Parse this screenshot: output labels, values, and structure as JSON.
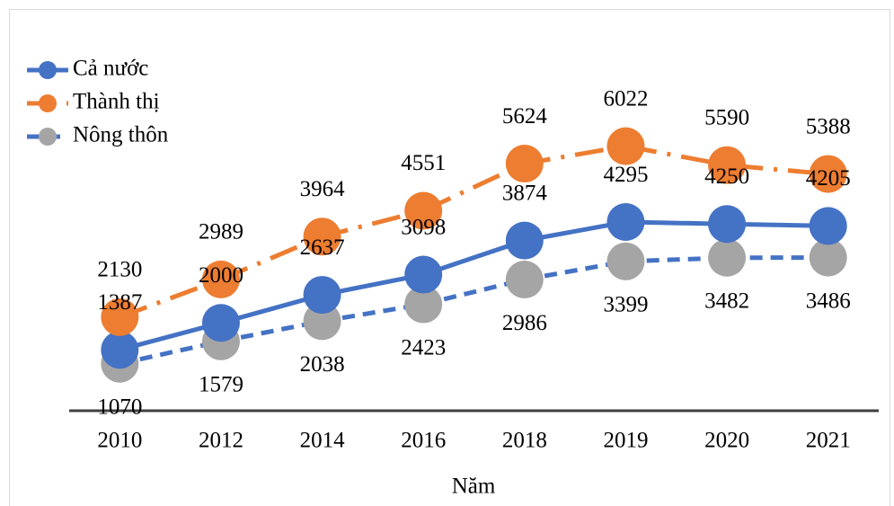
{
  "chart_data": {
    "type": "line",
    "x_label": "Năm",
    "categories": [
      "2010",
      "2012",
      "2014",
      "2016",
      "2018",
      "2019",
      "2020",
      "2021"
    ],
    "series": [
      {
        "name": "Cả nước",
        "color": "#4472c4",
        "marker_color": "#4472c4",
        "style": "solid",
        "label_position": "above",
        "values": [
          1387,
          2000,
          2637,
          3098,
          3874,
          4295,
          4250,
          4205
        ]
      },
      {
        "name": "Thành thị",
        "color": "#ed7d31",
        "marker_color": "#ed7d31",
        "style": "dashdot",
        "label_position": "above",
        "values": [
          2130,
          2989,
          3964,
          4551,
          5624,
          6022,
          5590,
          5388
        ]
      },
      {
        "name": "Nông thôn",
        "color": "#4472c4",
        "marker_color": "#a5a5a5",
        "style": "dash",
        "label_position": "below",
        "values": [
          1070,
          1579,
          2038,
          2423,
          2986,
          3399,
          3482,
          3486
        ]
      }
    ],
    "ylim": [
      0,
      9000
    ],
    "legend": "top-left"
  }
}
